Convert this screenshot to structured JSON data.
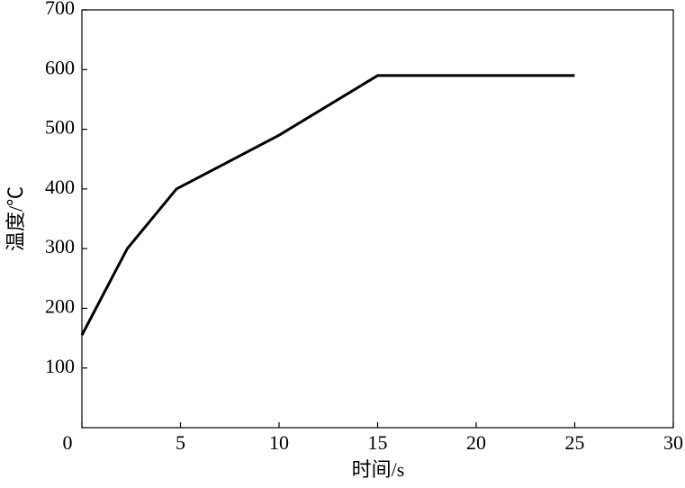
{
  "chart_data": {
    "type": "line",
    "x_label": "时间/s",
    "y_label": "温度/℃",
    "x": [
      0,
      2.3,
      4.8,
      10,
      15,
      25
    ],
    "values": [
      155,
      300,
      400,
      490,
      590,
      590
    ],
    "color": "#000000",
    "xlim": [
      0,
      30
    ],
    "xticks": [
      0,
      5,
      10,
      15,
      20,
      25,
      30
    ],
    "ylim": [
      0,
      700
    ],
    "yticks": [
      100,
      200,
      300,
      400,
      500,
      600,
      700
    ],
    "grid": false
  }
}
